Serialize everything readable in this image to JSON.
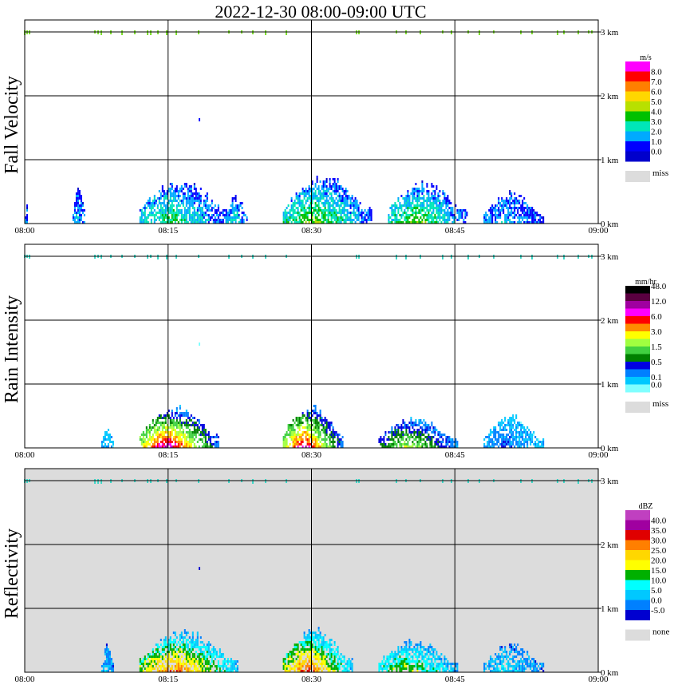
{
  "title": "2022-12-30   08:00-09:00 UTC",
  "chart_data": [
    {
      "type": "heatmap",
      "title": "Fall Velocity",
      "ylabel": "Fall Velocity",
      "x_ticks": [
        "08:00",
        "08:15",
        "08:30",
        "08:45",
        "09:00"
      ],
      "y_ticks": [
        "0 km",
        "1 km",
        "2 km",
        "3 km"
      ],
      "xlim": [
        "08:00",
        "09:00"
      ],
      "ylim_km": [
        0,
        3
      ],
      "grid": true,
      "background": "#ffffff",
      "colorbar": {
        "unit": "m/s",
        "labels": [
          "8.0",
          "7.0",
          "6.0",
          "5.0",
          "4.0",
          "3.0",
          "2.0",
          "1.0",
          "0.0"
        ],
        "colors": [
          "#ff00ff",
          "#ff0000",
          "#ff7f00",
          "#ffd700",
          "#b8e000",
          "#00c000",
          "#00e6b8",
          "#00aaff",
          "#0000ff",
          "#0000cc"
        ],
        "miss_label": "miss",
        "miss_color": "#dcdcdc"
      },
      "echoes": [
        {
          "start": "08:00",
          "end": "08:00",
          "top_km": 0.4,
          "intensity": 0.2
        },
        {
          "start": "08:05",
          "end": "08:06",
          "top_km": 0.7,
          "intensity": 0.2
        },
        {
          "start": "08:12",
          "end": "08:21",
          "top_km": 0.75,
          "intensity": 0.4
        },
        {
          "start": "08:21",
          "end": "08:23",
          "top_km": 0.5,
          "intensity": 0.3
        },
        {
          "start": "08:27",
          "end": "08:36",
          "top_km": 0.8,
          "intensity": 0.5
        },
        {
          "start": "08:38",
          "end": "08:46",
          "top_km": 0.7,
          "intensity": 0.5
        },
        {
          "start": "08:48",
          "end": "08:54",
          "top_km": 0.55,
          "intensity": 0.2
        }
      ],
      "top_layer_km": 3.0
    },
    {
      "type": "heatmap",
      "title": "Rain Intensity",
      "ylabel": "Rain Intensity",
      "x_ticks": [
        "08:00",
        "08:15",
        "08:30",
        "08:45",
        "09:00"
      ],
      "y_ticks": [
        "0 km",
        "1 km",
        "2 km",
        "3 km"
      ],
      "xlim": [
        "08:00",
        "09:00"
      ],
      "ylim_km": [
        0,
        3
      ],
      "grid": true,
      "background": "#ffffff",
      "colorbar": {
        "unit": "mm/hr",
        "labels": [
          "48.0",
          "12.0",
          "6.0",
          "3.0",
          "1.5",
          "0.5",
          "0.1",
          "0.0"
        ],
        "colors": [
          "#000000",
          "#5a0040",
          "#a000a0",
          "#ff00ff",
          "#ff0000",
          "#ff8c00",
          "#ffff00",
          "#a0ff40",
          "#40d040",
          "#008000",
          "#0000e0",
          "#0080ff",
          "#00c8ff",
          "#80ffff"
        ],
        "miss_label": "miss",
        "miss_color": "#dcdcdc"
      },
      "echoes": [
        {
          "start": "08:08",
          "end": "08:09",
          "top_km": 0.4,
          "intensity": 0.1
        },
        {
          "start": "08:12",
          "end": "08:20",
          "top_km": 0.7,
          "intensity": 0.9
        },
        {
          "start": "08:27",
          "end": "08:33",
          "top_km": 0.75,
          "intensity": 0.85
        },
        {
          "start": "08:37",
          "end": "08:45",
          "top_km": 0.55,
          "intensity": 0.5
        },
        {
          "start": "08:48",
          "end": "08:54",
          "top_km": 0.55,
          "intensity": 0.15
        }
      ],
      "top_layer_km": 3.0
    },
    {
      "type": "heatmap",
      "title": "Reflectivity",
      "ylabel": "Reflectivity",
      "x_ticks": [
        "08:00",
        "08:15",
        "08:30",
        "08:45",
        "09:00"
      ],
      "y_ticks": [
        "0 km",
        "1 km",
        "2 km",
        "3 km"
      ],
      "xlim": [
        "08:00",
        "09:00"
      ],
      "ylim_km": [
        0,
        3
      ],
      "grid": true,
      "background": "#dcdcdc",
      "colorbar": {
        "unit": "dBZ",
        "labels": [
          "40.0",
          "35.0",
          "30.0",
          "25.0",
          "20.0",
          "15.0",
          "10.0",
          "5.0",
          "0.0",
          "-5.0"
        ],
        "colors": [
          "#c040c0",
          "#a000a0",
          "#e00000",
          "#ff7f00",
          "#ffd700",
          "#ffff00",
          "#00b000",
          "#00ffff",
          "#00c8ff",
          "#0080ff",
          "#0000d0"
        ],
        "miss_label": "none",
        "miss_color": "#dcdcdc"
      },
      "echoes": [
        {
          "start": "08:08",
          "end": "08:09",
          "top_km": 0.5,
          "intensity": 0.15
        },
        {
          "start": "08:12",
          "end": "08:22",
          "top_km": 0.7,
          "intensity": 0.8
        },
        {
          "start": "08:27",
          "end": "08:34",
          "top_km": 0.75,
          "intensity": 0.85
        },
        {
          "start": "08:37",
          "end": "08:45",
          "top_km": 0.55,
          "intensity": 0.5
        },
        {
          "start": "08:48",
          "end": "08:54",
          "top_km": 0.5,
          "intensity": 0.2
        }
      ],
      "top_layer_km": 3.0
    }
  ]
}
